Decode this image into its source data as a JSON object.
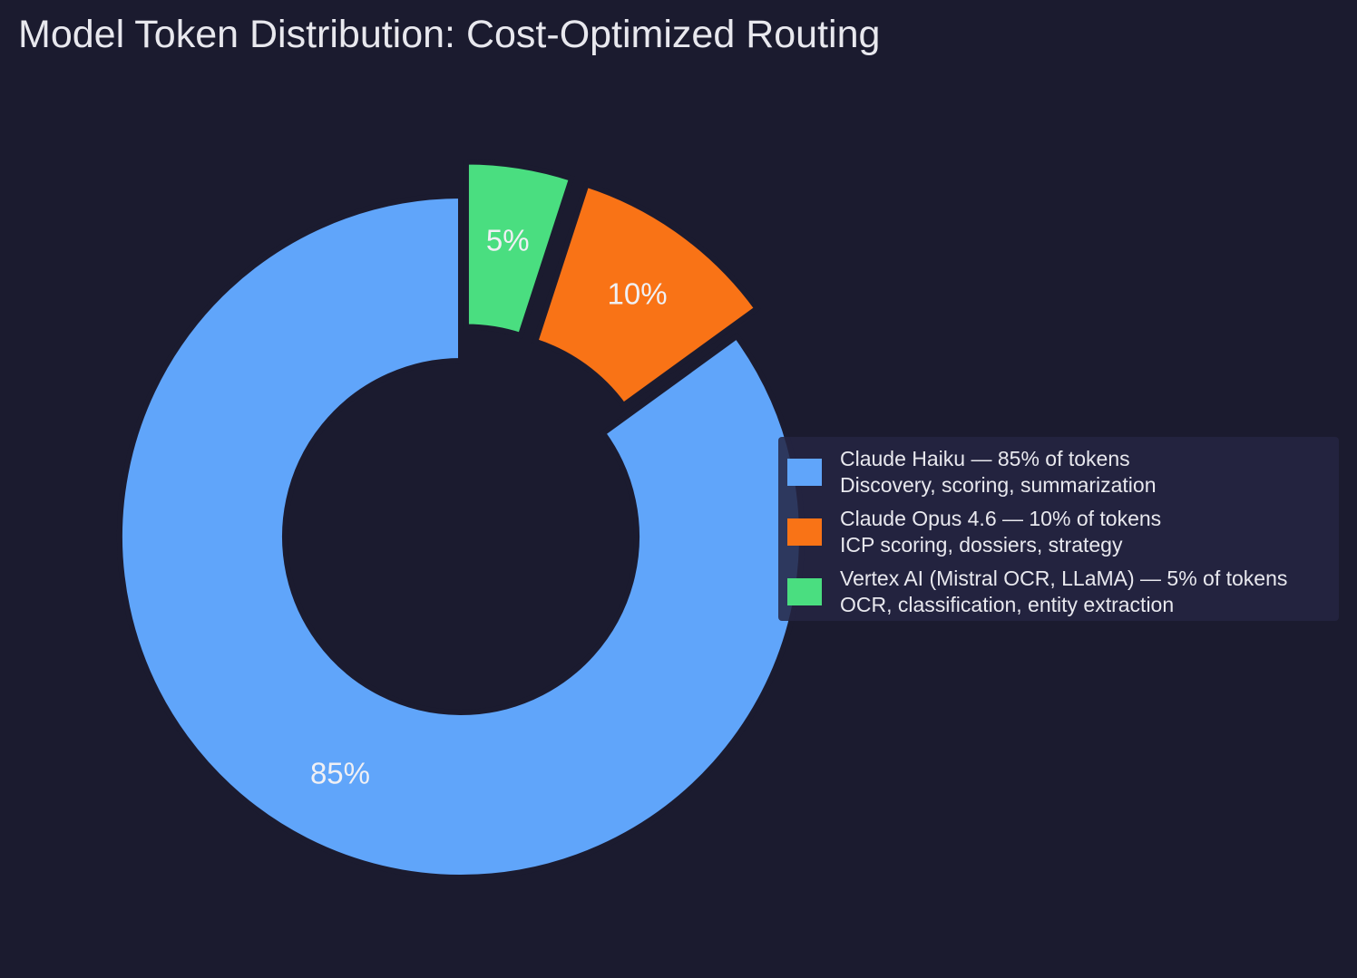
{
  "chart_data": {
    "type": "pie",
    "title": "Model Token Distribution: Cost-Optimized Routing",
    "donut": true,
    "slices": [
      {
        "label": "Claude Haiku — 85% of tokens",
        "sublabel": "Discovery, scoring, summarization",
        "value": 85,
        "pct_label": "85%",
        "color": "#60a5fa",
        "exploded": false
      },
      {
        "label": "Claude Opus 4.6 — 10% of tokens",
        "sublabel": "ICP scoring, dossiers, strategy",
        "value": 10,
        "pct_label": "10%",
        "color": "#f97316",
        "exploded": true
      },
      {
        "label": "Vertex AI (Mistral OCR, LLaMA) — 5% of tokens",
        "sublabel": "OCR, classification, entity extraction",
        "value": 5,
        "pct_label": "5%",
        "color": "#4ade80",
        "exploded": true
      }
    ],
    "start": "top",
    "direction": "counterclockwise",
    "legend_position": "right"
  }
}
